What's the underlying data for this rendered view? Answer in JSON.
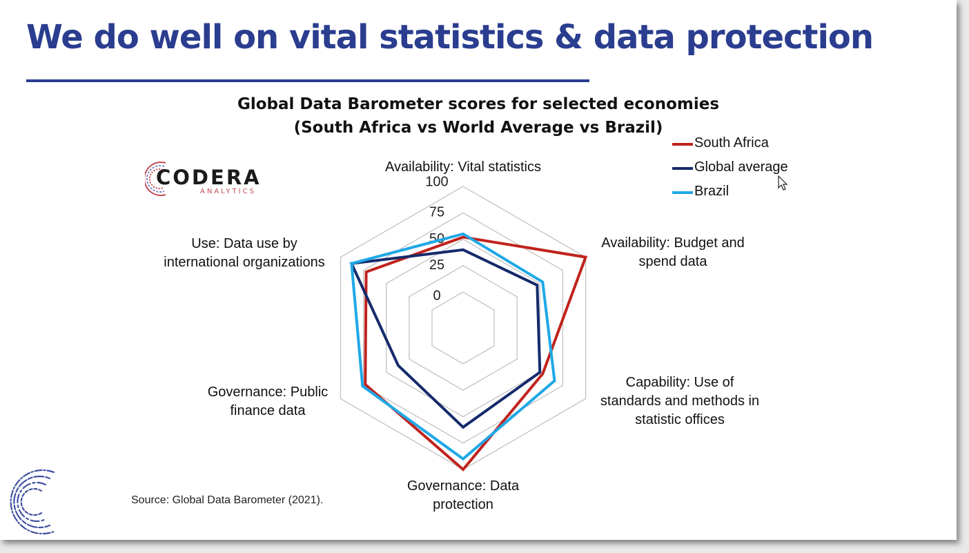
{
  "slide": {
    "title": "We do well on vital statistics & data protection",
    "source": "Source: Global Data Barometer (2021).",
    "logo": {
      "word": "CODERA",
      "sub": "ANALYTICS"
    }
  },
  "chart_data": {
    "type": "radar",
    "title": "Global Data Barometer scores for selected economies",
    "subtitle": "(South Africa vs World Average vs Brazil)",
    "axes": [
      "Availability: Vital statistics",
      "Availability: Budget and spend data",
      "Capability: Use of standards and methods in statistic offices",
      "Governance: Data protection",
      "Governance: Public finance data",
      "Use: Data use by international organizations"
    ],
    "axis_label_lines": [
      [
        "Availability: Vital statistics"
      ],
      [
        "Availability: Budget and",
        "spend data"
      ],
      [
        "Capability: Use of",
        "standards and methods in",
        "statistic offices"
      ],
      [
        "Governance: Data",
        "protection"
      ],
      [
        "Governance: Public",
        "finance data"
      ],
      [
        "Use: Data use by",
        "international organizations"
      ]
    ],
    "range": [
      0,
      100
    ],
    "ticks": [
      0,
      25,
      50,
      75,
      100
    ],
    "grid": true,
    "legend_position": "top-right",
    "series": [
      {
        "name": "South Africa",
        "color": "#c0231d",
        "values": [
          52,
          100,
          53,
          100,
          73,
          72
        ]
      },
      {
        "name": "Global average",
        "color": "#142a6b",
        "values": [
          40,
          47,
          50,
          60,
          37,
          88
        ]
      },
      {
        "name": "Brazil",
        "color": "#1fa8e6",
        "values": [
          55,
          53,
          66,
          90,
          76,
          88
        ]
      }
    ]
  }
}
